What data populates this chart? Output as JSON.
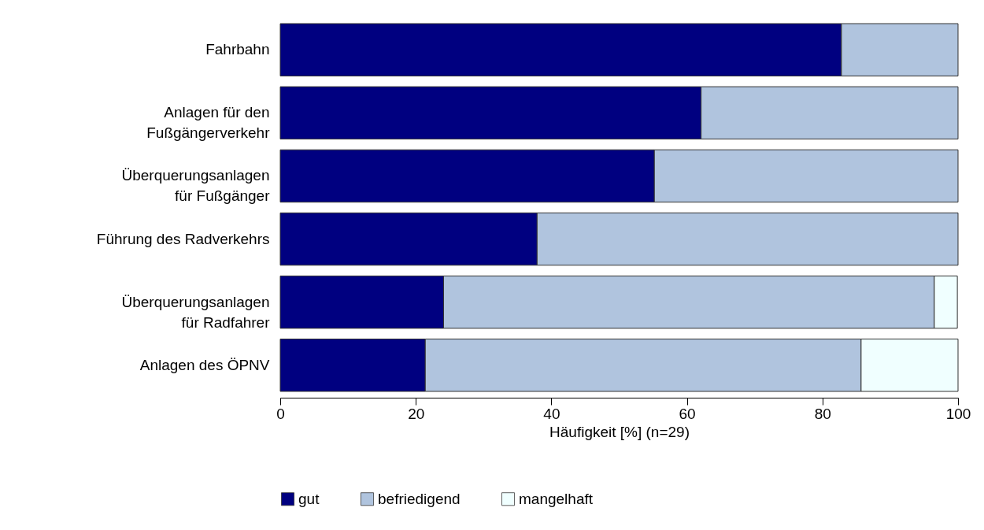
{
  "chart_data": {
    "type": "bar",
    "orientation": "horizontal",
    "stacked": true,
    "categories": [
      "Fahrbahn",
      "Anlagen für den\nFußgängerverkehr",
      "Überquerungsanlagen\nfür Fußgänger",
      "Führung des Radverkehrs",
      "Überquerungsanlagen\nfür Radfahrer",
      "Anlagen des ÖPNV"
    ],
    "series": [
      {
        "name": "gut",
        "color": "#000080",
        "values": [
          82.8,
          62.1,
          55.2,
          37.9,
          24.1,
          21.4
        ]
      },
      {
        "name": "befriedigend",
        "color": "#b0c4de",
        "values": [
          17.2,
          37.9,
          44.8,
          62.1,
          72.4,
          64.3
        ]
      },
      {
        "name": "mangelhaft",
        "color": "#f0ffff",
        "values": [
          null,
          null,
          null,
          null,
          3.4,
          14.3
        ]
      }
    ],
    "xlabel": "Häufigkeit [%] (n=29)",
    "xlim": [
      0,
      100
    ],
    "xticks": [
      0,
      20,
      40,
      60,
      80,
      100
    ],
    "grid": false,
    "legend": "bottom"
  }
}
